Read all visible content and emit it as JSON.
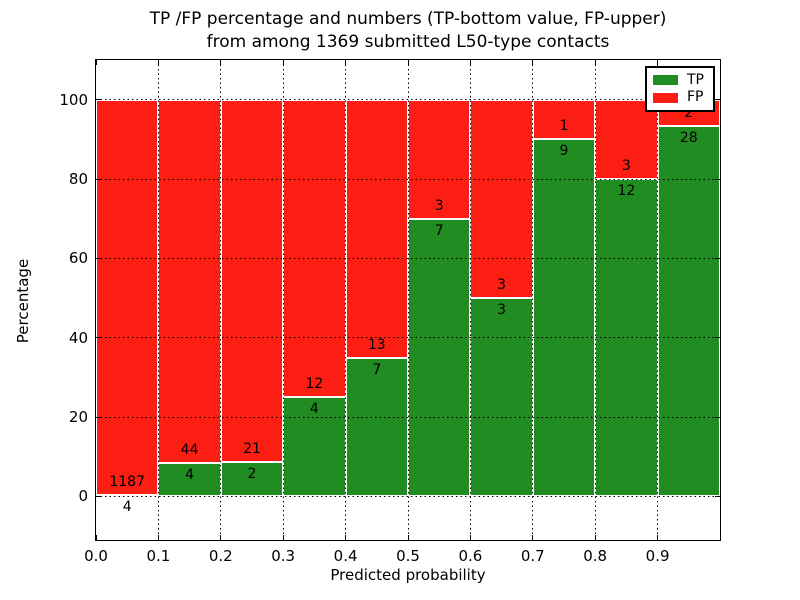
{
  "title": {
    "line1": "TP /FP percentage and numbers (TP-bottom value, FP-upper)",
    "line2": "from among 1369 submitted L50-type contacts"
  },
  "chart_data": {
    "type": "bar",
    "stacked": true,
    "title": "TP /FP percentage and numbers (TP-bottom value, FP-upper) from among 1369 submitted L50-type contacts",
    "xlabel": "Predicted probability",
    "ylabel": "Percentage",
    "xlim": [
      0.0,
      1.0
    ],
    "ylim": [
      -11,
      110
    ],
    "xtick_labels": [
      "0.0",
      "0.1",
      "0.2",
      "0.3",
      "0.4",
      "0.5",
      "0.6",
      "0.7",
      "0.8",
      "0.9"
    ],
    "yticks": [
      0,
      20,
      40,
      60,
      80,
      100
    ],
    "bin_starts": [
      0.0,
      0.1,
      0.2,
      0.3,
      0.4,
      0.5,
      0.6,
      0.7,
      0.8,
      0.9
    ],
    "bin_width": 0.1,
    "series": [
      {
        "name": "TP",
        "color": "#218c21",
        "counts": [
          4,
          4,
          2,
          4,
          7,
          7,
          3,
          9,
          12,
          28
        ]
      },
      {
        "name": "FP",
        "color": "#fc1d13",
        "counts": [
          1187,
          44,
          21,
          12,
          13,
          3,
          3,
          1,
          3,
          2
        ]
      }
    ],
    "tp_percent": [
      0.34,
      8.33,
      8.7,
      25.0,
      35.0,
      70.0,
      50.0,
      90.0,
      80.0,
      93.33
    ],
    "total_contacts": 1369,
    "grid": {
      "shown": true,
      "style": "dotted",
      "color": "#000000"
    },
    "legend": {
      "position": "upper right",
      "entries": [
        "TP",
        "FP"
      ]
    },
    "bar_edge_color": "#ffffff",
    "background_color": "#ffffff"
  }
}
